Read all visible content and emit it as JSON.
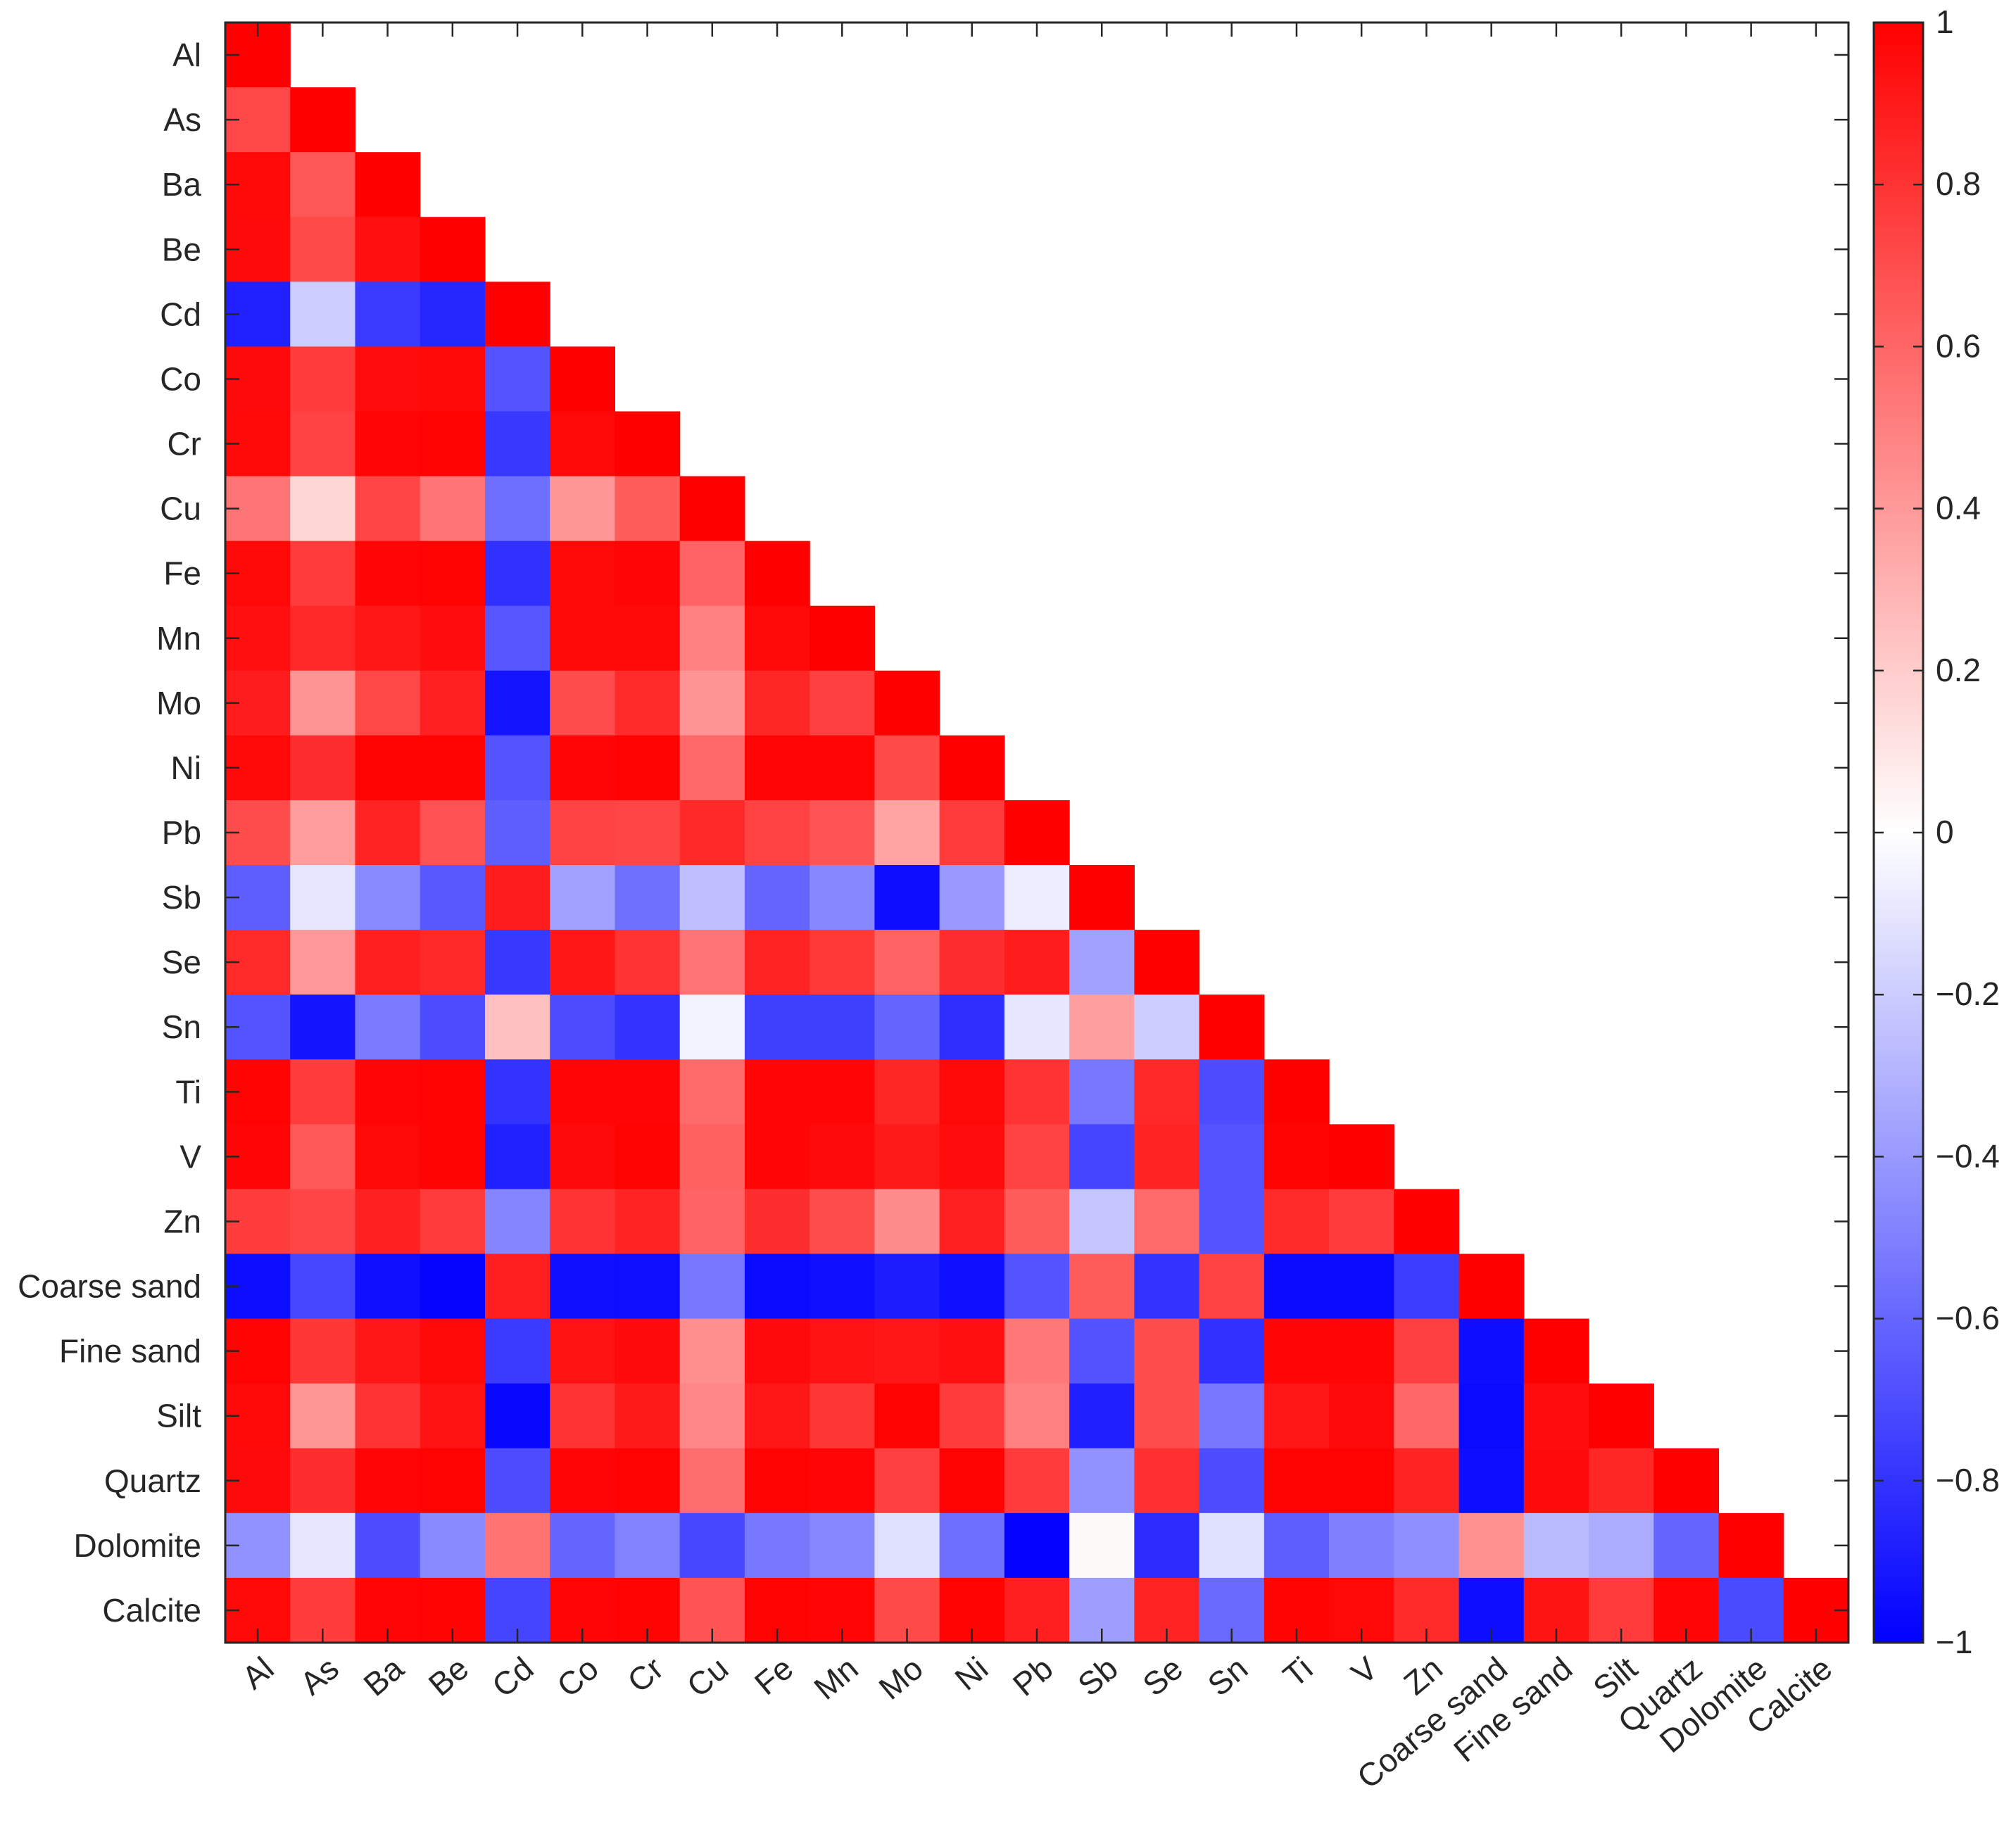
{
  "chart_data": {
    "type": "heatmap",
    "title": "",
    "xlabel": "",
    "ylabel": "",
    "labels": [
      "Al",
      "As",
      "Ba",
      "Be",
      "Cd",
      "Co",
      "Cr",
      "Cu",
      "Fe",
      "Mn",
      "Mo",
      "Ni",
      "Pb",
      "Sb",
      "Se",
      "Sn",
      "Ti",
      "V",
      "Zn",
      "Coarse sand",
      "Fine sand",
      "Silt",
      "Quartz",
      "Dolomite",
      "Calcite"
    ],
    "lower_triangle_only": true,
    "matrix": [
      [
        1.0
      ],
      [
        0.72,
        1.0
      ],
      [
        0.97,
        0.66,
        1.0
      ],
      [
        0.96,
        0.71,
        0.94,
        1.0
      ],
      [
        -0.87,
        -0.2,
        -0.77,
        -0.85,
        1.0
      ],
      [
        0.96,
        0.76,
        0.95,
        0.97,
        -0.67,
        1.0
      ],
      [
        0.97,
        0.74,
        0.98,
        0.99,
        -0.78,
        0.97,
        1.0
      ],
      [
        0.54,
        0.16,
        0.73,
        0.54,
        -0.57,
        0.41,
        0.64,
        1.0
      ],
      [
        0.97,
        0.77,
        0.98,
        0.99,
        -0.81,
        0.97,
        0.98,
        0.61,
        1.0
      ],
      [
        0.94,
        0.84,
        0.91,
        0.95,
        -0.66,
        0.97,
        0.97,
        0.5,
        0.97,
        1.0
      ],
      [
        0.89,
        0.42,
        0.72,
        0.87,
        -0.92,
        0.7,
        0.83,
        0.42,
        0.85,
        0.75,
        1.0
      ],
      [
        0.97,
        0.82,
        0.99,
        0.99,
        -0.67,
        0.98,
        0.99,
        0.59,
        0.98,
        0.98,
        0.71,
        1.0
      ],
      [
        0.7,
        0.39,
        0.86,
        0.68,
        -0.63,
        0.74,
        0.73,
        0.84,
        0.74,
        0.67,
        0.36,
        0.77,
        1.0
      ],
      [
        -0.63,
        -0.1,
        -0.46,
        -0.65,
        0.89,
        -0.37,
        -0.56,
        -0.25,
        -0.6,
        -0.47,
        -0.95,
        -0.4,
        -0.07,
        1.0
      ],
      [
        0.83,
        0.4,
        0.88,
        0.84,
        -0.78,
        0.91,
        0.8,
        0.54,
        0.86,
        0.78,
        0.61,
        0.82,
        0.89,
        -0.37,
        1.0
      ],
      [
        -0.67,
        -0.92,
        -0.52,
        -0.7,
        0.25,
        -0.7,
        -0.8,
        -0.05,
        -0.75,
        -0.75,
        -0.6,
        -0.82,
        -0.1,
        0.38,
        -0.2,
        1.0
      ],
      [
        0.99,
        0.76,
        0.98,
        0.99,
        -0.8,
        0.98,
        0.98,
        0.58,
        0.98,
        0.98,
        0.85,
        0.97,
        0.8,
        -0.53,
        0.84,
        -0.7,
        1.0
      ],
      [
        0.98,
        0.65,
        0.97,
        0.99,
        -0.87,
        0.96,
        0.99,
        0.62,
        0.98,
        0.96,
        0.9,
        0.95,
        0.74,
        -0.73,
        0.86,
        -0.67,
        0.99,
        1.0
      ],
      [
        0.76,
        0.73,
        0.87,
        0.77,
        -0.48,
        0.8,
        0.86,
        0.61,
        0.82,
        0.7,
        0.45,
        0.87,
        0.64,
        -0.23,
        0.58,
        -0.67,
        0.83,
        0.77,
        1.0
      ],
      [
        -0.95,
        -0.72,
        -0.94,
        -0.98,
        0.88,
        -0.94,
        -0.94,
        -0.53,
        -0.96,
        -0.94,
        -0.89,
        -0.94,
        -0.67,
        0.64,
        -0.8,
        0.74,
        -0.96,
        -0.96,
        -0.76,
        1.0
      ],
      [
        0.99,
        0.79,
        0.91,
        0.97,
        -0.77,
        0.93,
        0.96,
        0.44,
        0.96,
        0.93,
        0.91,
        0.94,
        0.53,
        -0.68,
        0.7,
        -0.81,
        0.98,
        0.98,
        0.75,
        -0.95,
        1.0
      ],
      [
        0.97,
        0.41,
        0.8,
        0.93,
        -0.97,
        0.8,
        0.9,
        0.47,
        0.91,
        0.79,
        0.99,
        0.76,
        0.5,
        -0.88,
        0.7,
        -0.53,
        0.91,
        0.96,
        0.6,
        -0.96,
        0.95,
        1.0
      ],
      [
        0.96,
        0.82,
        0.98,
        0.99,
        -0.7,
        0.98,
        0.99,
        0.57,
        0.99,
        0.98,
        0.75,
        0.99,
        0.77,
        -0.43,
        0.81,
        -0.7,
        0.99,
        0.99,
        0.86,
        -0.95,
        0.96,
        0.85,
        1.0
      ],
      [
        -0.43,
        -0.1,
        -0.7,
        -0.46,
        0.55,
        -0.6,
        -0.49,
        -0.72,
        -0.53,
        -0.47,
        -0.12,
        -0.57,
        -0.99,
        0.02,
        -0.83,
        -0.12,
        -0.63,
        -0.5,
        -0.44,
        0.43,
        -0.27,
        -0.33,
        -0.6,
        1.0
      ],
      [
        0.97,
        0.76,
        0.98,
        0.99,
        -0.73,
        0.98,
        0.99,
        0.67,
        0.99,
        0.98,
        0.71,
        0.99,
        0.88,
        -0.38,
        0.86,
        -0.59,
        0.99,
        0.97,
        0.83,
        -0.95,
        0.92,
        0.77,
        0.98,
        -0.71,
        1.0
      ]
    ],
    "colorbar": {
      "min": -1,
      "max": 1,
      "ticks": [
        1,
        0.8,
        0.6,
        0.4,
        0.2,
        0,
        -0.2,
        -0.4,
        -0.6,
        -0.8,
        -1
      ],
      "tick_labels": [
        "1",
        "0.8",
        "0.6",
        "0.4",
        "0.2",
        "0",
        "−0.2",
        "−0.4",
        "−0.6",
        "−0.8",
        "−1"
      ],
      "colors": {
        "low": "#0000ff",
        "mid": "#ffffff",
        "high": "#ff0000"
      }
    },
    "grid": false,
    "legend": "colorbar-right"
  }
}
